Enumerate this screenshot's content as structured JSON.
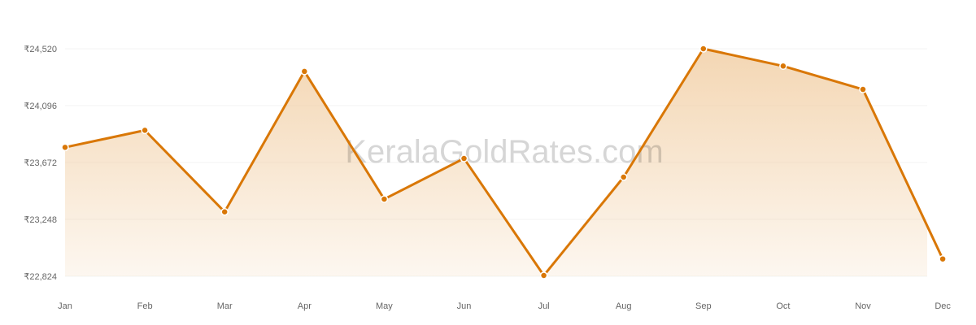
{
  "chart_data": {
    "type": "area",
    "title": "",
    "xlabel": "",
    "ylabel": "",
    "categories": [
      "Jan",
      "Feb",
      "Mar",
      "Apr",
      "May",
      "Jun",
      "Jul",
      "Aug",
      "Sep",
      "Oct",
      "Nov",
      "Dec"
    ],
    "values": [
      23785,
      23912,
      23304,
      24351,
      23399,
      23702,
      22830,
      23563,
      24520,
      24391,
      24217,
      22953
    ],
    "yticks": [
      22824,
      23248,
      23672,
      24096,
      24520
    ],
    "ytick_labels": [
      "₹22,824",
      "₹23,248",
      "₹23,672",
      "₹24,096",
      "₹24,520"
    ],
    "ylim": [
      22824,
      24520
    ],
    "grid": true,
    "legend": "none",
    "colors": {
      "line": "#d97706",
      "fill": "#f0c99a",
      "grid": "#f3f3f3",
      "marker_stroke": "#ffffff"
    }
  },
  "watermark": "KeralaGoldRates.com"
}
